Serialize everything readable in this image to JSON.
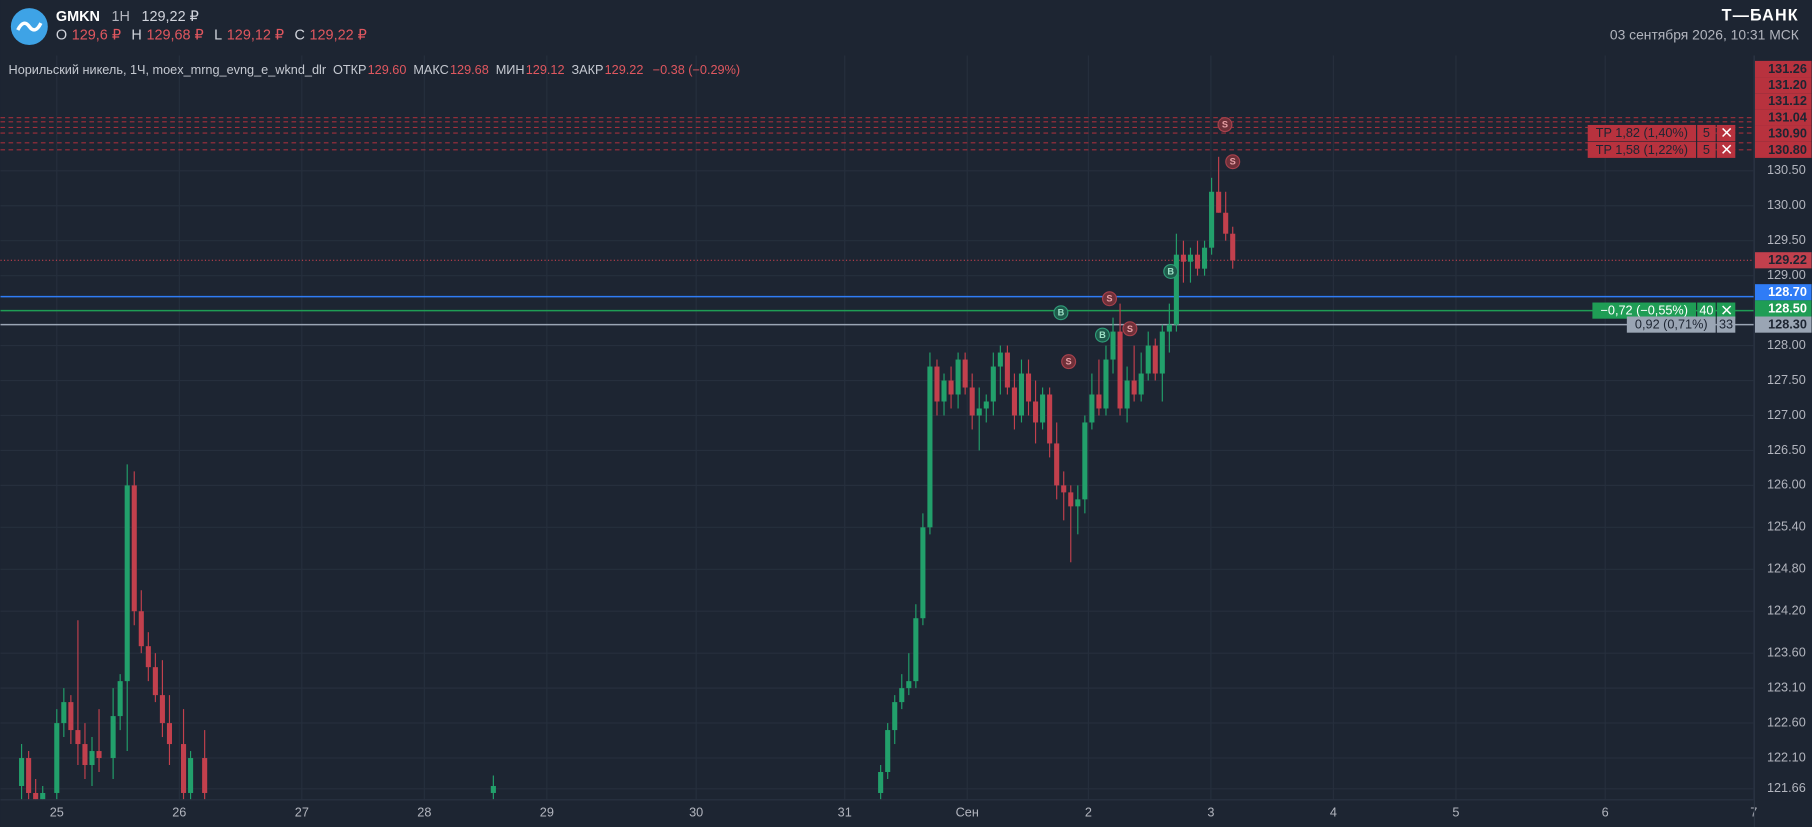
{
  "header": {
    "ticker": "GMKN",
    "interval": "1H",
    "price": "129,22 ₽",
    "ohlc": [
      {
        "label": "O",
        "value": "129,6 ₽"
      },
      {
        "label": "H",
        "value": "129,68 ₽"
      },
      {
        "label": "L",
        "value": "129,12 ₽"
      },
      {
        "label": "C",
        "value": "129,22 ₽"
      }
    ]
  },
  "brand": {
    "name": "Т—БАНК",
    "datetime": "03 сентября 2026, 10:31 МСК"
  },
  "legend": {
    "instrument": "Норильский никель, 1Ч, moex_mrng_evng_e_wknd_dlr",
    "fields": [
      {
        "label": "ОТКР",
        "value": "129.60"
      },
      {
        "label": "МАКС",
        "value": "129.68"
      },
      {
        "label": "МИН",
        "value": "129.12"
      },
      {
        "label": "ЗАКР",
        "value": "129.22"
      }
    ],
    "change": "−0.38 (−0.29%)"
  },
  "chart_data": {
    "type": "candlestick",
    "up_color": "#22a06b",
    "down_color": "#c2404d",
    "grid": true,
    "xlim": [
      0,
      249
    ],
    "xticks": [
      {
        "value": 8,
        "label": "25"
      },
      {
        "value": 25.4,
        "label": "26"
      },
      {
        "value": 42.8,
        "label": "27"
      },
      {
        "value": 60.2,
        "label": "28"
      },
      {
        "value": 77.6,
        "label": "29"
      },
      {
        "value": 98.8,
        "label": "30"
      },
      {
        "value": 119.9,
        "label": "31"
      },
      {
        "value": 137.3,
        "label": "Сен"
      },
      {
        "value": 154.5,
        "label": "2"
      },
      {
        "value": 171.9,
        "label": "3"
      },
      {
        "value": 189.3,
        "label": "4"
      },
      {
        "value": 206.7,
        "label": "5"
      },
      {
        "value": 227.9,
        "label": "6"
      },
      {
        "value": 249,
        "label": "7"
      }
    ],
    "ylim": [
      121.51,
      132.15
    ],
    "yticks": [
      {
        "value": 130.5,
        "label": "130.50"
      },
      {
        "value": 130,
        "label": "130.00"
      },
      {
        "value": 129.5,
        "label": "129.50"
      },
      {
        "value": 129,
        "label": "129.00"
      },
      {
        "value": 128,
        "label": "128.00"
      },
      {
        "value": 127.5,
        "label": "127.50"
      },
      {
        "value": 127,
        "label": "127.00"
      },
      {
        "value": 126.5,
        "label": "126.50"
      },
      {
        "value": 126,
        "label": "126.00"
      },
      {
        "value": 125.4,
        "label": "125.40"
      },
      {
        "value": 124.8,
        "label": "124.80"
      },
      {
        "value": 124.2,
        "label": "124.20"
      },
      {
        "value": 123.6,
        "label": "123.60"
      },
      {
        "value": 123.1,
        "label": "123.10"
      },
      {
        "value": 122.6,
        "label": "122.60"
      },
      {
        "value": 122.1,
        "label": "122.10"
      },
      121.66
    ],
    "x": [
      3,
      4,
      5,
      6,
      8,
      9,
      10,
      11,
      12,
      13,
      14,
      16,
      17,
      18,
      19,
      20,
      21,
      22,
      23,
      24,
      26,
      27,
      29,
      70,
      125,
      126,
      127,
      128,
      129,
      130,
      131,
      132,
      133,
      134,
      135,
      136,
      137,
      138,
      139,
      140,
      141,
      142,
      143,
      144,
      145,
      146,
      147,
      148,
      149,
      150,
      151,
      152,
      153,
      154,
      155,
      156,
      157,
      158,
      159,
      160,
      161,
      162,
      163,
      164,
      165,
      166,
      167,
      168,
      169,
      170,
      171,
      172,
      173,
      174,
      175
    ],
    "open": [
      121.7,
      122.1,
      121.6,
      121.5,
      121.6,
      122.6,
      122.9,
      122.5,
      122.3,
      122.0,
      122.2,
      122.1,
      122.7,
      123.2,
      126.0,
      124.2,
      123.7,
      123.4,
      123.0,
      122.6,
      122.3,
      121.6,
      122.1,
      121.6,
      121.6,
      121.9,
      122.5,
      122.9,
      123.1,
      123.2,
      124.1,
      125.4,
      127.7,
      127.2,
      127.5,
      127.3,
      127.8,
      127.4,
      127.0,
      127.1,
      127.2,
      127.7,
      127.9,
      127.4,
      127.0,
      127.6,
      127.2,
      126.9,
      127.3,
      126.6,
      126.0,
      125.9,
      125.7,
      125.8,
      126.9,
      127.3,
      127.1,
      127.8,
      128.2,
      127.1,
      127.5,
      127.3,
      127.6,
      128.0,
      127.6,
      128.2,
      128.3,
      129.3,
      129.2,
      129.3,
      129.1,
      129.4,
      130.2,
      129.9,
      129.6
    ],
    "high": [
      122.3,
      122.2,
      121.8,
      121.7,
      122.8,
      123.1,
      123.0,
      124.07,
      122.6,
      122.4,
      122.8,
      123.1,
      123.3,
      126.3,
      126.2,
      124.5,
      123.9,
      123.6,
      123.5,
      123.0,
      122.8,
      122.2,
      122.5,
      121.85,
      122.0,
      122.6,
      123.0,
      123.3,
      123.6,
      124.3,
      125.6,
      127.9,
      127.8,
      127.6,
      127.7,
      127.9,
      127.9,
      127.6,
      127.4,
      127.3,
      127.9,
      128.0,
      128.0,
      127.6,
      127.8,
      127.8,
      127.5,
      127.4,
      127.4,
      126.9,
      126.2,
      126.0,
      126.0,
      127.0,
      127.6,
      127.8,
      128.0,
      128.4,
      128.6,
      127.7,
      128.0,
      127.9,
      128.2,
      128.1,
      128.3,
      128.6,
      129.6,
      129.5,
      129.4,
      129.5,
      129.5,
      130.4,
      130.7,
      130.2,
      129.7
    ],
    "low": [
      121.3,
      121.5,
      121.3,
      121.3,
      121.5,
      122.4,
      122.3,
      122.0,
      121.8,
      121.7,
      121.9,
      121.8,
      122.5,
      122.2,
      124.0,
      123.6,
      123.2,
      122.9,
      122.4,
      122.0,
      121.4,
      121.2,
      121.4,
      121.4,
      121.4,
      121.8,
      122.3,
      122.8,
      123.0,
      123.1,
      124.0,
      125.3,
      127.0,
      127.0,
      127.1,
      127.1,
      127.3,
      126.8,
      126.5,
      126.9,
      127.0,
      127.3,
      127.3,
      126.8,
      126.9,
      127.0,
      126.6,
      126.8,
      126.4,
      125.8,
      125.5,
      124.9,
      125.3,
      125.6,
      126.8,
      127.0,
      127.0,
      127.6,
      127.0,
      126.9,
      127.2,
      127.2,
      127.5,
      127.5,
      127.2,
      127.9,
      128.2,
      128.9,
      128.9,
      129.0,
      129.0,
      129.3,
      129.9,
      129.5,
      129.1
    ],
    "close": [
      122.1,
      121.6,
      121.5,
      121.6,
      122.6,
      122.9,
      122.5,
      122.3,
      122.0,
      122.2,
      122.1,
      122.7,
      123.2,
      126.0,
      124.2,
      123.7,
      123.4,
      123.0,
      122.6,
      122.3,
      121.6,
      122.1,
      121.6,
      121.7,
      121.9,
      122.5,
      122.9,
      123.1,
      123.2,
      124.1,
      125.4,
      127.7,
      127.2,
      127.5,
      127.3,
      127.8,
      127.4,
      127.0,
      127.1,
      127.2,
      127.7,
      127.9,
      127.4,
      127.0,
      127.6,
      127.2,
      126.9,
      127.3,
      126.6,
      126.0,
      125.9,
      125.7,
      125.8,
      126.9,
      127.3,
      127.1,
      127.8,
      128.2,
      127.1,
      127.5,
      127.3,
      127.6,
      128.0,
      127.6,
      128.2,
      128.3,
      129.3,
      129.2,
      129.3,
      129.1,
      129.4,
      130.2,
      129.9,
      129.6,
      129.22
    ],
    "trades": [
      {
        "side": "S",
        "x": 173.9,
        "price": 131.16
      },
      {
        "side": "S",
        "x": 175.0,
        "price": 130.63
      },
      {
        "side": "B",
        "x": 166.2,
        "price": 129.06
      },
      {
        "side": "S",
        "x": 157.5,
        "price": 128.67
      },
      {
        "side": "B",
        "x": 150.6,
        "price": 128.47
      },
      {
        "side": "B",
        "x": 156.5,
        "price": 128.15
      },
      {
        "side": "S",
        "x": 160.4,
        "price": 128.24
      },
      {
        "side": "S",
        "x": 151.7,
        "price": 127.77
      }
    ],
    "price_lines": [
      {
        "value": 131.26,
        "color": "#b8323e",
        "style": "dashed"
      },
      {
        "value": 131.2,
        "label": "131.20",
        "color": "#b8323e",
        "style": "dashed"
      },
      {
        "value": 131.12,
        "color": "#b8323e",
        "style": "dashed"
      },
      {
        "value": 131.04,
        "color": "#b8323e",
        "style": "dashed",
        "order": {
          "text": "TP 1,82 (1,40%)",
          "qty": 5,
          "closable": true
        }
      },
      {
        "value": 130.9,
        "label": "130.90",
        "color": "#b8323e",
        "style": "dashed"
      },
      {
        "value": 130.8,
        "label": "130.80",
        "color": "#b8323e",
        "style": "dashed",
        "order": {
          "text": "TP 1,58 (1,22%)",
          "qty": 5,
          "closable": true
        }
      },
      {
        "value": 129.22,
        "color": "#c2404d",
        "style": "dotted"
      },
      {
        "value": 128.7,
        "label": "128.70",
        "color": "#2f7cf6",
        "style": "solid"
      },
      {
        "value": 128.5,
        "label": "128.50",
        "color": "#1f9d55",
        "style": "solid",
        "order": {
          "text": "−0,72 (−0,55%)",
          "qty": 40,
          "closable": true
        }
      },
      {
        "value": 128.3,
        "label": "128.30",
        "color": "#9aa5b4",
        "style": "solid",
        "order": {
          "text": "0,92 (0,71%)",
          "qty": 33,
          "closable": false
        }
      }
    ]
  }
}
